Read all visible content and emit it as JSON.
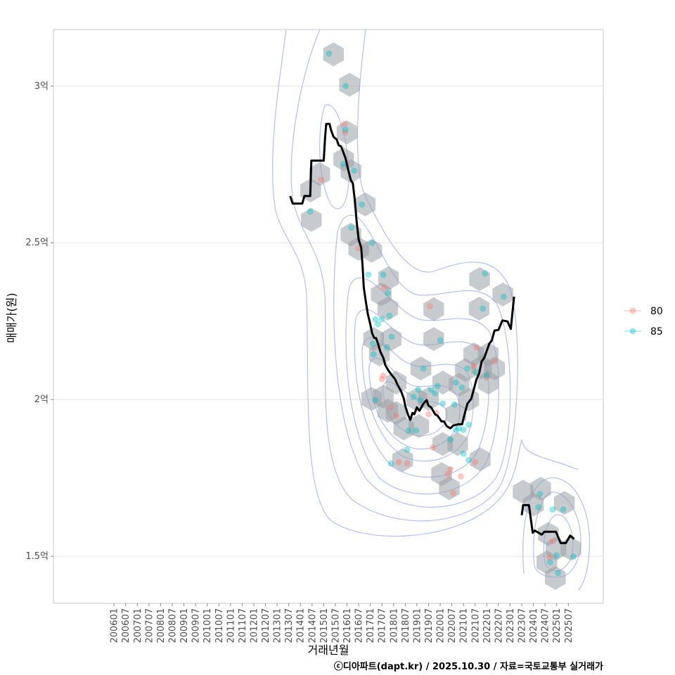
{
  "chart_data": {
    "type": "scatter",
    "title": "",
    "xlabel": "거래년월",
    "ylabel": "매매가(원)",
    "caption": "ⓒ디아파트(dapt.kr) / 2025.10.30 / 자료=국토교통부 실거래가",
    "x_unit": "decimal year",
    "y_unit": "억",
    "xlim": [
      2003.4,
      2027.0
    ],
    "ylim": [
      1.35,
      3.18
    ],
    "grid": true,
    "y_ticks": [
      {
        "value": 1.5,
        "label": "1.5억"
      },
      {
        "value": 2.0,
        "label": "2억"
      },
      {
        "value": 2.5,
        "label": "2.5억"
      },
      {
        "value": 3.0,
        "label": "3억"
      }
    ],
    "x_ticks": [
      "200601",
      "200607",
      "200701",
      "200707",
      "200801",
      "200807",
      "200901",
      "200907",
      "201001",
      "201007",
      "201101",
      "201107",
      "201201",
      "201207",
      "201301",
      "201307",
      "201401",
      "201407",
      "201501",
      "201507",
      "201601",
      "201607",
      "201701",
      "201707",
      "201801",
      "201807",
      "201901",
      "201907",
      "202001",
      "202007",
      "202101",
      "202107",
      "202201",
      "202207",
      "202301",
      "202307",
      "202401",
      "202407",
      "202501",
      "202507"
    ],
    "legend": {
      "placement": "right",
      "entries": [
        {
          "label": "80",
          "color": "#F8766D"
        },
        {
          "label": "85",
          "color": "#00BFC4"
        }
      ]
    },
    "colors": {
      "line": "#000000",
      "hexbin": "#9aa0a6",
      "contour": "#9aaaf0",
      "grid": "#e3e3e3"
    },
    "trend_line": [
      [
        [
          2013.56,
          2.649
        ],
        [
          2013.67,
          2.625
        ],
        [
          2014.08,
          2.625
        ],
        [
          2014.17,
          2.649
        ],
        [
          2014.42,
          2.649
        ],
        [
          2014.47,
          2.762
        ],
        [
          2015.0,
          2.762
        ],
        [
          2015.06,
          2.838
        ],
        [
          2015.11,
          2.879
        ],
        [
          2015.25,
          2.879
        ],
        [
          2015.31,
          2.861
        ],
        [
          2015.42,
          2.838
        ],
        [
          2015.56,
          2.829
        ],
        [
          2015.64,
          2.811
        ],
        [
          2015.75,
          2.807
        ],
        [
          2015.83,
          2.791
        ],
        [
          2015.94,
          2.769
        ],
        [
          2016.06,
          2.73
        ],
        [
          2016.17,
          2.699
        ],
        [
          2016.25,
          2.69
        ],
        [
          2016.33,
          2.64
        ],
        [
          2016.42,
          2.564
        ],
        [
          2016.5,
          2.51
        ],
        [
          2016.61,
          2.485
        ],
        [
          2016.67,
          2.425
        ],
        [
          2016.72,
          2.357
        ],
        [
          2016.81,
          2.312
        ],
        [
          2016.89,
          2.274
        ],
        [
          2017.0,
          2.24
        ],
        [
          2017.08,
          2.211
        ],
        [
          2017.17,
          2.196
        ],
        [
          2017.25,
          2.196
        ],
        [
          2017.33,
          2.178
        ],
        [
          2017.44,
          2.151
        ],
        [
          2017.56,
          2.133
        ],
        [
          2017.64,
          2.11
        ],
        [
          2017.78,
          2.092
        ],
        [
          2017.89,
          2.081
        ],
        [
          2018.06,
          2.065
        ],
        [
          2018.17,
          2.047
        ],
        [
          2018.33,
          2.025
        ],
        [
          2018.44,
          2.002
        ],
        [
          2018.5,
          1.98
        ],
        [
          2018.61,
          1.953
        ],
        [
          2018.72,
          1.935
        ],
        [
          2018.81,
          1.957
        ],
        [
          2018.89,
          1.953
        ],
        [
          2019.0,
          1.975
        ],
        [
          2019.11,
          1.964
        ],
        [
          2019.28,
          1.987
        ],
        [
          2019.42,
          1.998
        ],
        [
          2019.5,
          1.98
        ],
        [
          2019.61,
          1.975
        ],
        [
          2019.78,
          1.953
        ],
        [
          2019.89,
          1.948
        ],
        [
          2020.06,
          1.93
        ],
        [
          2020.17,
          1.93
        ],
        [
          2020.28,
          1.915
        ],
        [
          2020.44,
          1.908
        ],
        [
          2020.56,
          1.917
        ],
        [
          2020.78,
          1.921
        ],
        [
          2020.94,
          1.921
        ],
        [
          2021.06,
          1.957
        ],
        [
          2021.17,
          1.987
        ],
        [
          2021.33,
          2.002
        ],
        [
          2021.44,
          2.031
        ],
        [
          2021.56,
          2.065
        ],
        [
          2021.67,
          2.083
        ],
        [
          2021.78,
          2.121
        ],
        [
          2021.89,
          2.133
        ],
        [
          2022.0,
          2.155
        ],
        [
          2022.11,
          2.178
        ],
        [
          2022.22,
          2.189
        ],
        [
          2022.33,
          2.22
        ],
        [
          2022.5,
          2.222
        ],
        [
          2022.67,
          2.252
        ],
        [
          2022.89,
          2.249
        ],
        [
          2023.03,
          2.225
        ],
        [
          2023.17,
          2.328
        ]
      ],
      [
        [
          2023.5,
          1.631
        ],
        [
          2023.56,
          1.663
        ],
        [
          2023.81,
          1.663
        ],
        [
          2023.97,
          1.575
        ],
        [
          2024.06,
          1.582
        ],
        [
          2024.36,
          1.569
        ],
        [
          2024.47,
          1.578
        ],
        [
          2024.97,
          1.578
        ],
        [
          2025.17,
          1.542
        ],
        [
          2025.39,
          1.542
        ],
        [
          2025.58,
          1.566
        ],
        [
          2025.75,
          1.555
        ]
      ]
    ],
    "series": [
      {
        "name": "80",
        "points": [
          [
            2015.89,
            2.879
          ],
          [
            2015.92,
            2.852
          ],
          [
            2014.89,
            2.701
          ],
          [
            2016.5,
            2.483
          ],
          [
            2017.61,
            2.357
          ],
          [
            2019.56,
            2.297
          ],
          [
            2017.56,
            2.076
          ],
          [
            2017.5,
            2.065
          ],
          [
            2017.89,
            1.975
          ],
          [
            2018.11,
            1.948
          ],
          [
            2018.58,
            1.796
          ],
          [
            2019.69,
            1.847
          ],
          [
            2020.33,
            1.762
          ],
          [
            2020.44,
            1.778
          ],
          [
            2020.56,
            1.701
          ],
          [
            2020.89,
            1.755
          ],
          [
            2021.5,
            1.8
          ],
          [
            2021.44,
            2.106
          ],
          [
            2022.33,
            2.121
          ],
          [
            2021.56,
            2.166
          ],
          [
            2022.0,
            2.07
          ],
          [
            2019.5,
            1.953
          ],
          [
            2019.83,
            1.957
          ],
          [
            2024.83,
            1.548
          ],
          [
            2024.69,
            1.497
          ],
          [
            2018.22,
            1.8
          ]
        ]
      },
      {
        "name": "85",
        "points": [
          [
            2015.22,
            3.103
          ],
          [
            2015.94,
            3.0
          ],
          [
            2014.42,
            2.6
          ],
          [
            2015.94,
            2.861
          ],
          [
            2015.83,
            2.751
          ],
          [
            2016.31,
            2.73
          ],
          [
            2016.19,
            2.548
          ],
          [
            2016.64,
            2.622
          ],
          [
            2017.08,
            2.499
          ],
          [
            2016.92,
            2.398
          ],
          [
            2017.56,
            2.398
          ],
          [
            2017.75,
            2.339
          ],
          [
            2017.22,
            2.256
          ],
          [
            2017.33,
            2.24
          ],
          [
            2017.5,
            2.256
          ],
          [
            2017.83,
            2.267
          ],
          [
            2017.92,
            2.2
          ],
          [
            2017.11,
            2.178
          ],
          [
            2017.14,
            2.144
          ],
          [
            2017.22,
            1.998
          ],
          [
            2017.72,
            2.166
          ],
          [
            2018.64,
            1.901
          ],
          [
            2018.97,
            1.901
          ],
          [
            2018.86,
            2.009
          ],
          [
            2019.28,
            2.099
          ],
          [
            2019.06,
            2.031
          ],
          [
            2019.61,
            2.031
          ],
          [
            2019.89,
            2.043
          ],
          [
            2020.11,
            1.987
          ],
          [
            2020.67,
            2.054
          ],
          [
            2020.94,
            2.038
          ],
          [
            2021.17,
            2.099
          ],
          [
            2021.92,
            2.402
          ],
          [
            2021.83,
            2.29
          ],
          [
            2022.72,
            2.328
          ],
          [
            2020.0,
            2.189
          ],
          [
            2020.61,
            1.984
          ],
          [
            2020.81,
            1.908
          ],
          [
            2021.0,
            1.903
          ],
          [
            2021.22,
            1.919
          ],
          [
            2020.67,
            1.903
          ],
          [
            2020.44,
            1.872
          ],
          [
            2021.0,
            1.827
          ],
          [
            2021.22,
            1.807
          ],
          [
            2019.78,
            2.02
          ],
          [
            2019.14,
            1.998
          ],
          [
            2017.89,
            1.796
          ],
          [
            2018.58,
            1.84
          ],
          [
            2021.56,
            2.088
          ],
          [
            2022.0,
            2.076
          ],
          [
            2024.28,
            1.699
          ],
          [
            2024.22,
            1.656
          ],
          [
            2024.83,
            1.649
          ],
          [
            2025.28,
            1.649
          ],
          [
            2025.06,
            1.447
          ],
          [
            2024.72,
            1.481
          ],
          [
            2025.0,
            1.503
          ],
          [
            2025.72,
            1.499
          ]
        ]
      }
    ],
    "hexbins": [
      [
        2015.42,
        3.101
      ],
      [
        2016.11,
        3.004
      ],
      [
        2016.0,
        2.852
      ],
      [
        2015.86,
        2.766
      ],
      [
        2016.17,
        2.728
      ],
      [
        2014.83,
        2.719
      ],
      [
        2014.44,
        2.667
      ],
      [
        2014.47,
        2.573
      ],
      [
        2016.78,
        2.622
      ],
      [
        2016.17,
        2.526
      ],
      [
        2016.5,
        2.481
      ],
      [
        2017.06,
        2.474
      ],
      [
        2017.78,
        2.387
      ],
      [
        2017.47,
        2.335
      ],
      [
        2017.75,
        2.29
      ],
      [
        2017.14,
        2.193
      ],
      [
        2017.89,
        2.193
      ],
      [
        2017.39,
        2.144
      ],
      [
        2017.06,
        2.002
      ],
      [
        2017.56,
        2.009
      ],
      [
        2018.11,
        2.054
      ],
      [
        2017.75,
        1.964
      ],
      [
        2018.11,
        1.957
      ],
      [
        2018.44,
        1.908
      ],
      [
        2019.08,
        1.915
      ],
      [
        2019.0,
        2.0
      ],
      [
        2019.17,
        2.099
      ],
      [
        2019.72,
        2.193
      ],
      [
        2019.72,
        2.288
      ],
      [
        2019.5,
        2.002
      ],
      [
        2020.11,
        2.054
      ],
      [
        2020.11,
        1.858
      ],
      [
        2020.06,
        1.762
      ],
      [
        2020.39,
        1.717
      ],
      [
        2020.75,
        1.858
      ],
      [
        2020.67,
        1.953
      ],
      [
        2020.81,
        2.047
      ],
      [
        2021.22,
        2.0
      ],
      [
        2021.08,
        2.094
      ],
      [
        2021.44,
        2.144
      ],
      [
        2021.78,
        2.103
      ],
      [
        2022.06,
        2.054
      ],
      [
        2022.33,
        2.099
      ],
      [
        2022.06,
        2.144
      ],
      [
        2021.72,
        1.809
      ],
      [
        2018.39,
        1.807
      ],
      [
        2021.67,
        2.29
      ],
      [
        2021.69,
        2.384
      ],
      [
        2022.69,
        2.335
      ],
      [
        2023.56,
        1.706
      ],
      [
        2024.31,
        1.715
      ],
      [
        2024.0,
        1.665
      ],
      [
        2025.33,
        1.67
      ],
      [
        2024.64,
        1.571
      ],
      [
        2024.97,
        1.524
      ],
      [
        2025.61,
        1.524
      ],
      [
        2024.94,
        1.431
      ],
      [
        2024.58,
        1.481
      ]
    ]
  }
}
